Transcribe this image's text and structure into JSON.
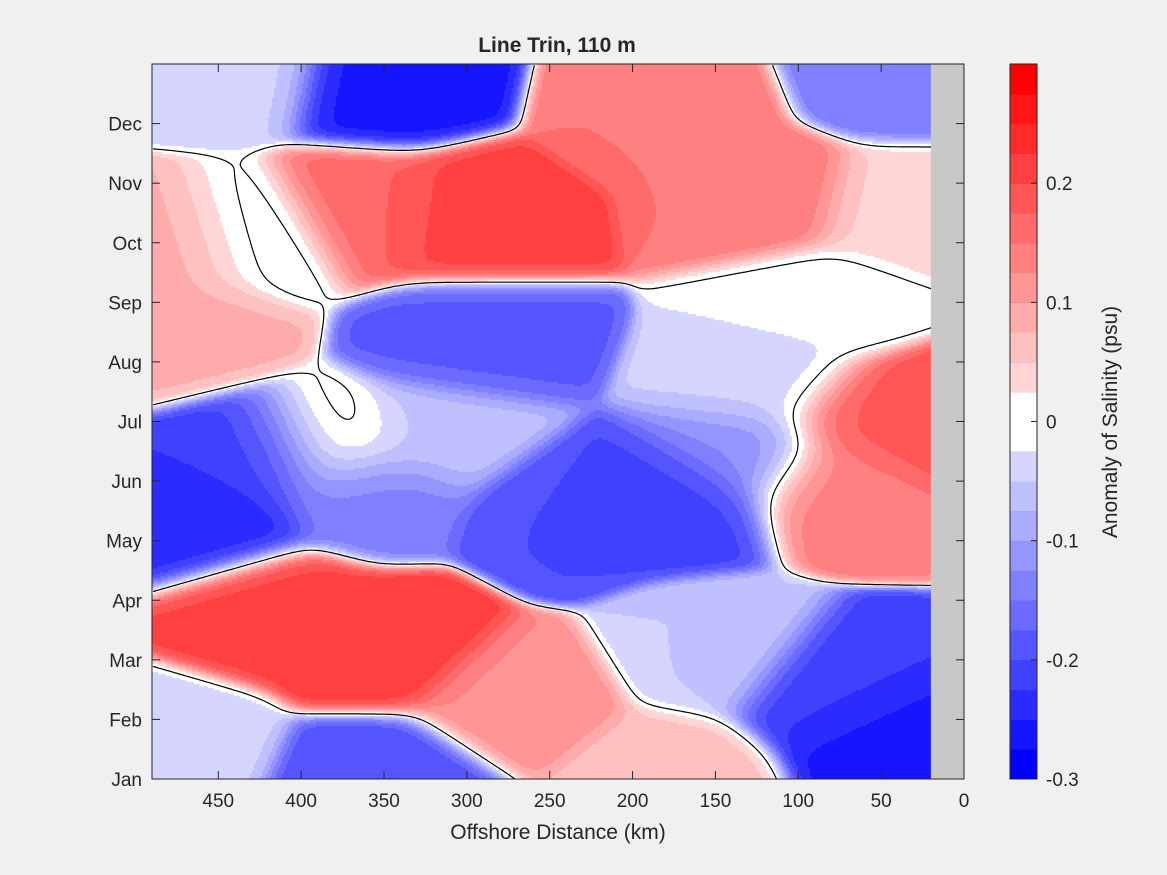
{
  "figure": {
    "background": "#f0f0f0"
  },
  "chart_data": {
    "type": "heatmap",
    "title": "Line Trin, 110 m",
    "xlabel": "Offshore Distance (km)",
    "ylabel": "",
    "xlim": [
      0,
      490
    ],
    "x_reversed": true,
    "x_ticks": [
      450,
      400,
      350,
      300,
      250,
      200,
      150,
      100,
      50,
      0
    ],
    "y_ticks": [
      "Jan",
      "Feb",
      "Mar",
      "Apr",
      "May",
      "Jun",
      "Jul",
      "Aug",
      "Sep",
      "Oct",
      "Nov",
      "Dec"
    ],
    "y_tick_months": [
      1,
      2,
      3,
      4,
      5,
      6,
      7,
      8,
      9,
      10,
      11,
      12
    ],
    "ylim_months": [
      1,
      13
    ],
    "no_data_region_km": [
      0,
      20
    ],
    "no_data_color": "#c8c8c8",
    "zero_contour": true,
    "colorbar": {
      "label": "Anomaly of Salinity (psu)",
      "range": [
        -0.3,
        0.3
      ],
      "step": 0.025,
      "tick_values": [
        -0.3,
        -0.2,
        -0.1,
        0,
        0.1,
        0.2
      ],
      "tick_labels": [
        "-0.3",
        "-0.2",
        "-0.1",
        "0",
        "0.1",
        "0.2"
      ],
      "negative_color": "#0000ff",
      "positive_color": "#ff0000",
      "neutral_color": "#ffffff"
    },
    "features": [
      {
        "x": 350,
        "month": 12.7,
        "value": -0.26
      },
      {
        "x": 350,
        "month": 1.0,
        "value": -0.2
      },
      {
        "x": 40,
        "month": 12.9,
        "value": -0.15
      },
      {
        "x": 440,
        "month": 12.9,
        "value": -0.04
      },
      {
        "x": 460,
        "month": 10.0,
        "value": 0.1
      },
      {
        "x": 470,
        "month": 8.6,
        "value": 0.08
      },
      {
        "x": 365,
        "month": 10.5,
        "value": 0.17
      },
      {
        "x": 300,
        "month": 10.4,
        "value": 0.21
      },
      {
        "x": 180,
        "month": 12.3,
        "value": 0.15
      },
      {
        "x": 120,
        "month": 10.7,
        "value": 0.15
      },
      {
        "x": 40,
        "month": 10.5,
        "value": 0.04
      },
      {
        "x": 430,
        "month": 10.1,
        "value": -0.05
      },
      {
        "x": 460,
        "month": 5.3,
        "value": -0.24
      },
      {
        "x": 420,
        "month": 6.4,
        "value": -0.22
      },
      {
        "x": 300,
        "month": 8.3,
        "value": -0.18
      },
      {
        "x": 360,
        "month": 5.9,
        "value": -0.14
      },
      {
        "x": 235,
        "month": 5.5,
        "value": -0.2
      },
      {
        "x": 175,
        "month": 5.7,
        "value": -0.21
      },
      {
        "x": 130,
        "month": 6.5,
        "value": -0.12
      },
      {
        "x": 320,
        "month": 6.8,
        "value": -0.06
      },
      {
        "x": 120,
        "month": 7.6,
        "value": -0.04
      },
      {
        "x": 60,
        "month": 7.0,
        "value": 0.18
      },
      {
        "x": 20,
        "month": 7.0,
        "value": 0.2
      },
      {
        "x": 75,
        "month": 6.0,
        "value": 0.14
      },
      {
        "x": 420,
        "month": 3.8,
        "value": 0.21
      },
      {
        "x": 350,
        "month": 3.2,
        "value": 0.22
      },
      {
        "x": 270,
        "month": 2.3,
        "value": 0.12
      },
      {
        "x": 180,
        "month": 1.1,
        "value": 0.06
      },
      {
        "x": 80,
        "month": 2.5,
        "value": -0.22
      },
      {
        "x": 45,
        "month": 1.7,
        "value": -0.26
      },
      {
        "x": 480,
        "month": 1.6,
        "value": -0.04
      },
      {
        "x": 150,
        "month": 3.1,
        "value": -0.05
      },
      {
        "x": 90,
        "month": 9.0,
        "value": -0.02
      },
      {
        "x": 380,
        "month": 6.6,
        "value": 0.03
      }
    ]
  }
}
